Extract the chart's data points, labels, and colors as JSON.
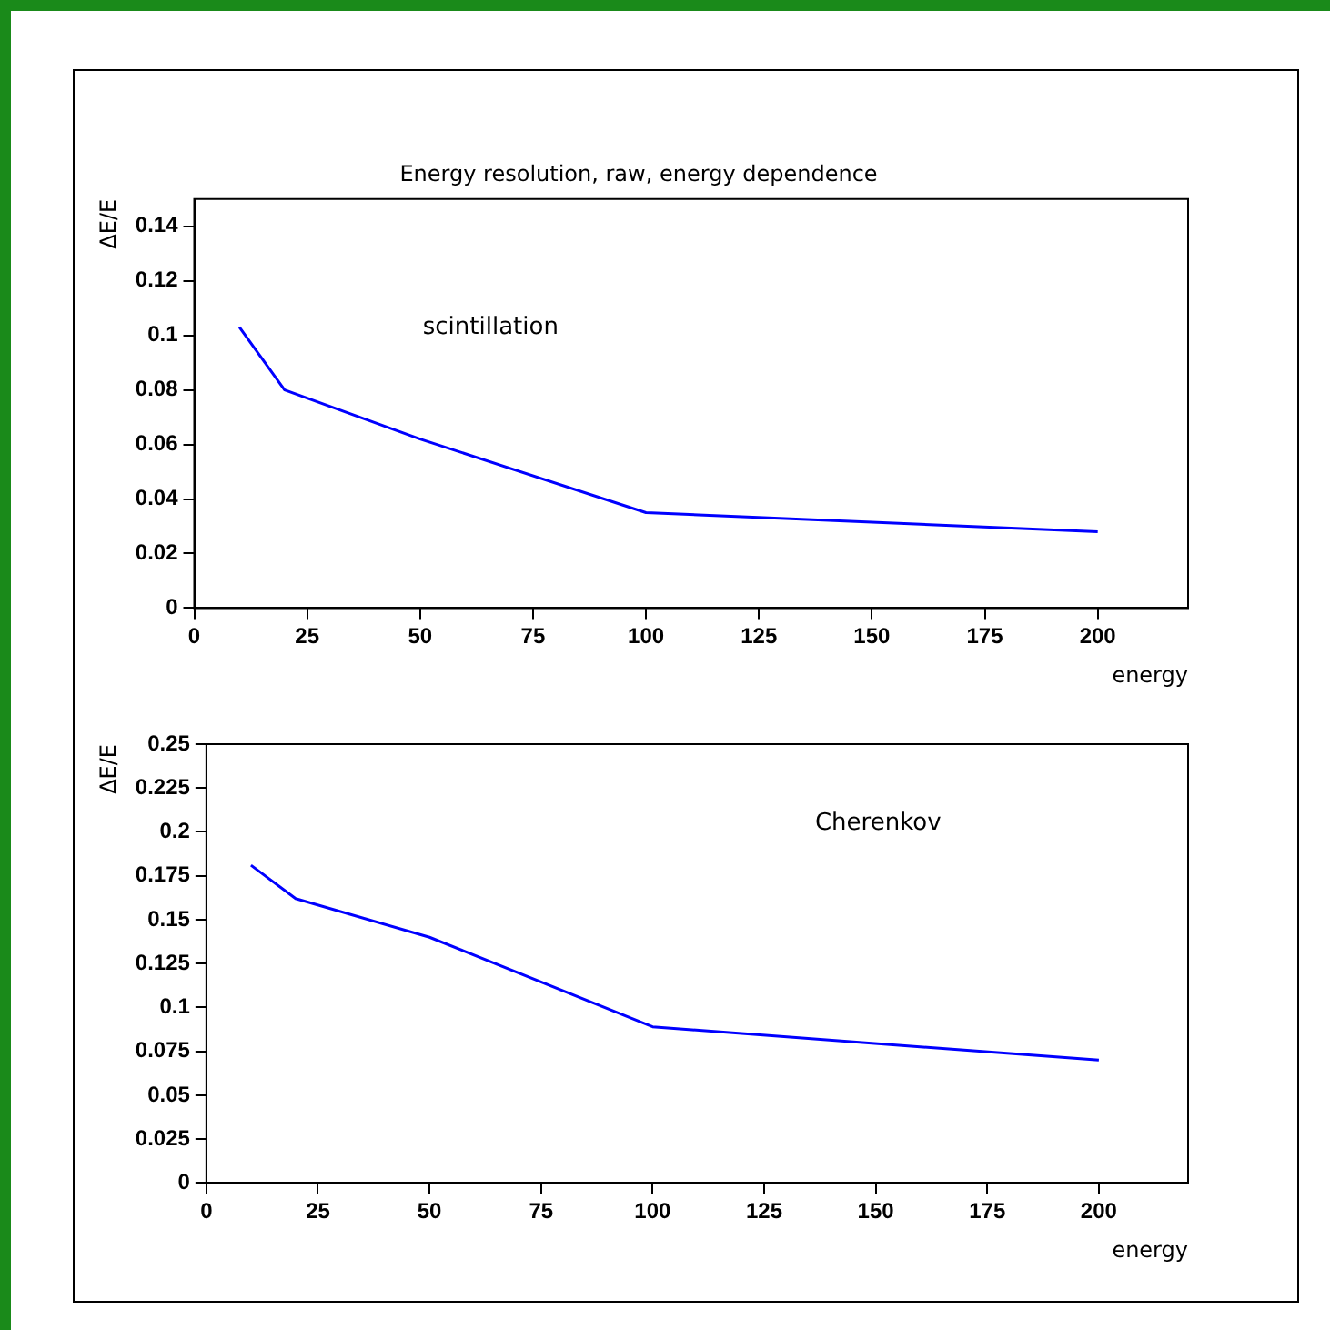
{
  "chart_data": [
    {
      "type": "line",
      "title": "Energy resolution, raw, energy dependence",
      "xlabel": "energy",
      "ylabel": "ΔE/E",
      "annotations": [
        "scintillation"
      ],
      "x": [
        10,
        20,
        50,
        100,
        200
      ],
      "series": [
        {
          "color": "#0000ff",
          "values": [
            0.103,
            0.08,
            0.062,
            0.035,
            0.028
          ]
        }
      ],
      "xlim": [
        0,
        220
      ],
      "xticks": [
        0,
        25,
        50,
        75,
        100,
        125,
        150,
        175,
        200
      ],
      "ylim": [
        0,
        0.15
      ],
      "yticks": [
        0,
        0.02,
        0.04,
        0.06,
        0.08,
        0.1,
        0.12,
        0.14
      ],
      "grid": false,
      "legend": false,
      "marker": "none",
      "line_style": "solid"
    },
    {
      "type": "line",
      "xlabel": "energy",
      "ylabel": "ΔE/E",
      "annotations": [
        "Cherenkov"
      ],
      "x": [
        10,
        20,
        50,
        100,
        200
      ],
      "series": [
        {
          "color": "#0000ff",
          "values": [
            0.181,
            0.162,
            0.14,
            0.089,
            0.07
          ]
        }
      ],
      "xlim": [
        0,
        220
      ],
      "xticks": [
        0,
        25,
        50,
        75,
        100,
        125,
        150,
        175,
        200
      ],
      "ylim": [
        0,
        0.25
      ],
      "yticks": [
        0,
        0.025,
        0.05,
        0.075,
        0.1,
        0.125,
        0.15,
        0.175,
        0.2,
        0.225,
        0.25
      ],
      "grid": false,
      "legend": false,
      "marker": "none",
      "line_style": "solid"
    }
  ]
}
